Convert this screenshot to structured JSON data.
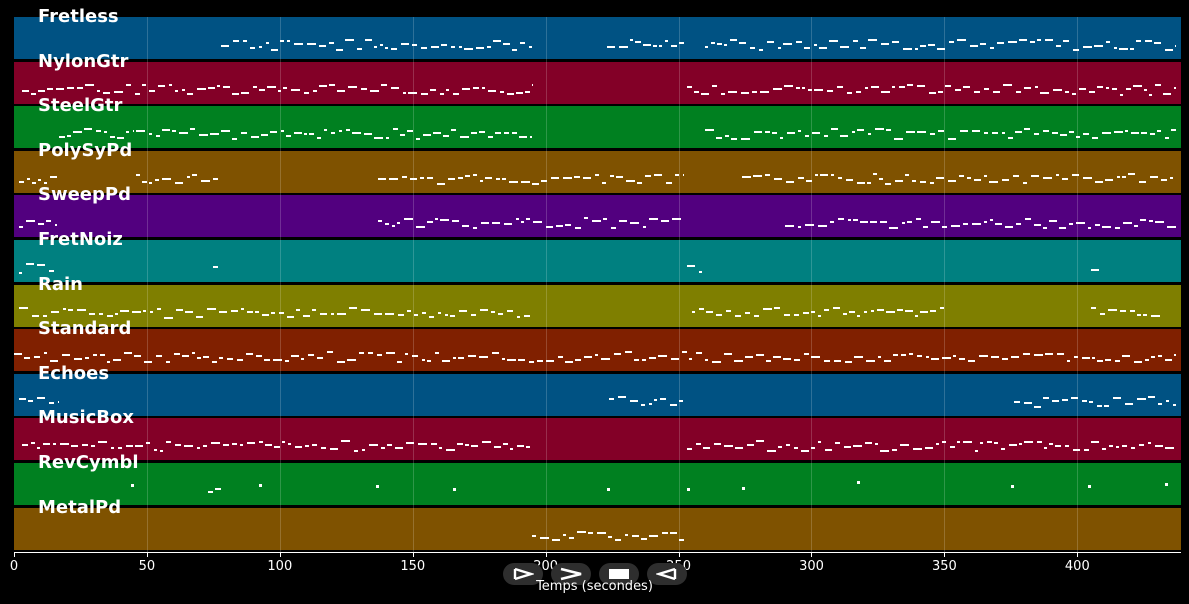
{
  "time_axis": {
    "min": 0,
    "max": 439,
    "ticks": [
      0,
      50,
      100,
      150,
      200,
      250,
      300,
      350,
      400
    ],
    "label": "Temps (secondes)"
  },
  "tracks": [
    {
      "name": "Fretless",
      "color": "#005283"
    },
    {
      "name": "NylonGtr",
      "color": "#830027"
    },
    {
      "name": "SteelGtr",
      "color": "#008020"
    },
    {
      "name": "PolySyPd",
      "color": "#7f5200"
    },
    {
      "name": "SweepPd",
      "color": "#52007f"
    },
    {
      "name": "FretNoiz",
      "color": "#008080"
    },
    {
      "name": "Rain",
      "color": "#7f7f00"
    },
    {
      "name": "Standard",
      "color": "#802000"
    },
    {
      "name": "Echoes",
      "color": "#005283"
    },
    {
      "name": "MusicBox",
      "color": "#830027"
    },
    {
      "name": "RevCymbl",
      "color": "#008020"
    },
    {
      "name": "MetalPd",
      "color": "#7f5200"
    }
  ],
  "controls": [
    {
      "name": "play-button",
      "icon": "play-outline-icon"
    },
    {
      "name": "fast-forward-button",
      "icon": "chevron-right-icon"
    },
    {
      "name": "stop-button",
      "icon": "stop-icon"
    },
    {
      "name": "rewind-button",
      "icon": "play-reverse-outline-icon"
    }
  ],
  "note_regions": [
    {
      "track": 0,
      "segments": [
        [
          78,
          195
        ],
        [
          223,
          252
        ],
        [
          260,
          437
        ]
      ]
    },
    {
      "track": 1,
      "segments": [
        [
          3,
          195
        ],
        [
          253,
          437
        ]
      ]
    },
    {
      "track": 2,
      "segments": [
        [
          17,
          45
        ],
        [
          46,
          195
        ],
        [
          260,
          437
        ]
      ]
    },
    {
      "track": 3,
      "segments": [
        [
          2,
          16
        ],
        [
          46,
          78
        ],
        [
          137,
          252
        ],
        [
          274,
          437
        ]
      ]
    },
    {
      "track": 4,
      "segments": [
        [
          2,
          16
        ],
        [
          137,
          252
        ],
        [
          290,
          437
        ]
      ]
    },
    {
      "track": 5,
      "segments": [
        [
          2,
          15
        ],
        [
          75,
          77
        ],
        [
          253,
          259
        ],
        [
          405,
          408
        ]
      ]
    },
    {
      "track": 6,
      "segments": [
        [
          2,
          195
        ],
        [
          255,
          350
        ],
        [
          405,
          432
        ]
      ]
    },
    {
      "track": 7,
      "segments": [
        [
          0,
          437
        ]
      ]
    },
    {
      "track": 8,
      "segments": [
        [
          2,
          17
        ],
        [
          224,
          252
        ],
        [
          376,
          437
        ]
      ]
    },
    {
      "track": 9,
      "segments": [
        [
          3,
          195
        ],
        [
          253,
          437
        ]
      ]
    },
    {
      "track": 10,
      "segments": [
        [
          44,
          44
        ],
        [
          73,
          78
        ],
        [
          92,
          92
        ],
        [
          136,
          136
        ],
        [
          165,
          165
        ],
        [
          223,
          223
        ],
        [
          253,
          253
        ],
        [
          274,
          274
        ],
        [
          317,
          317
        ],
        [
          375,
          375
        ],
        [
          404,
          404
        ],
        [
          433,
          433
        ]
      ]
    },
    {
      "track": 11,
      "segments": [
        [
          195,
          252
        ]
      ]
    }
  ]
}
